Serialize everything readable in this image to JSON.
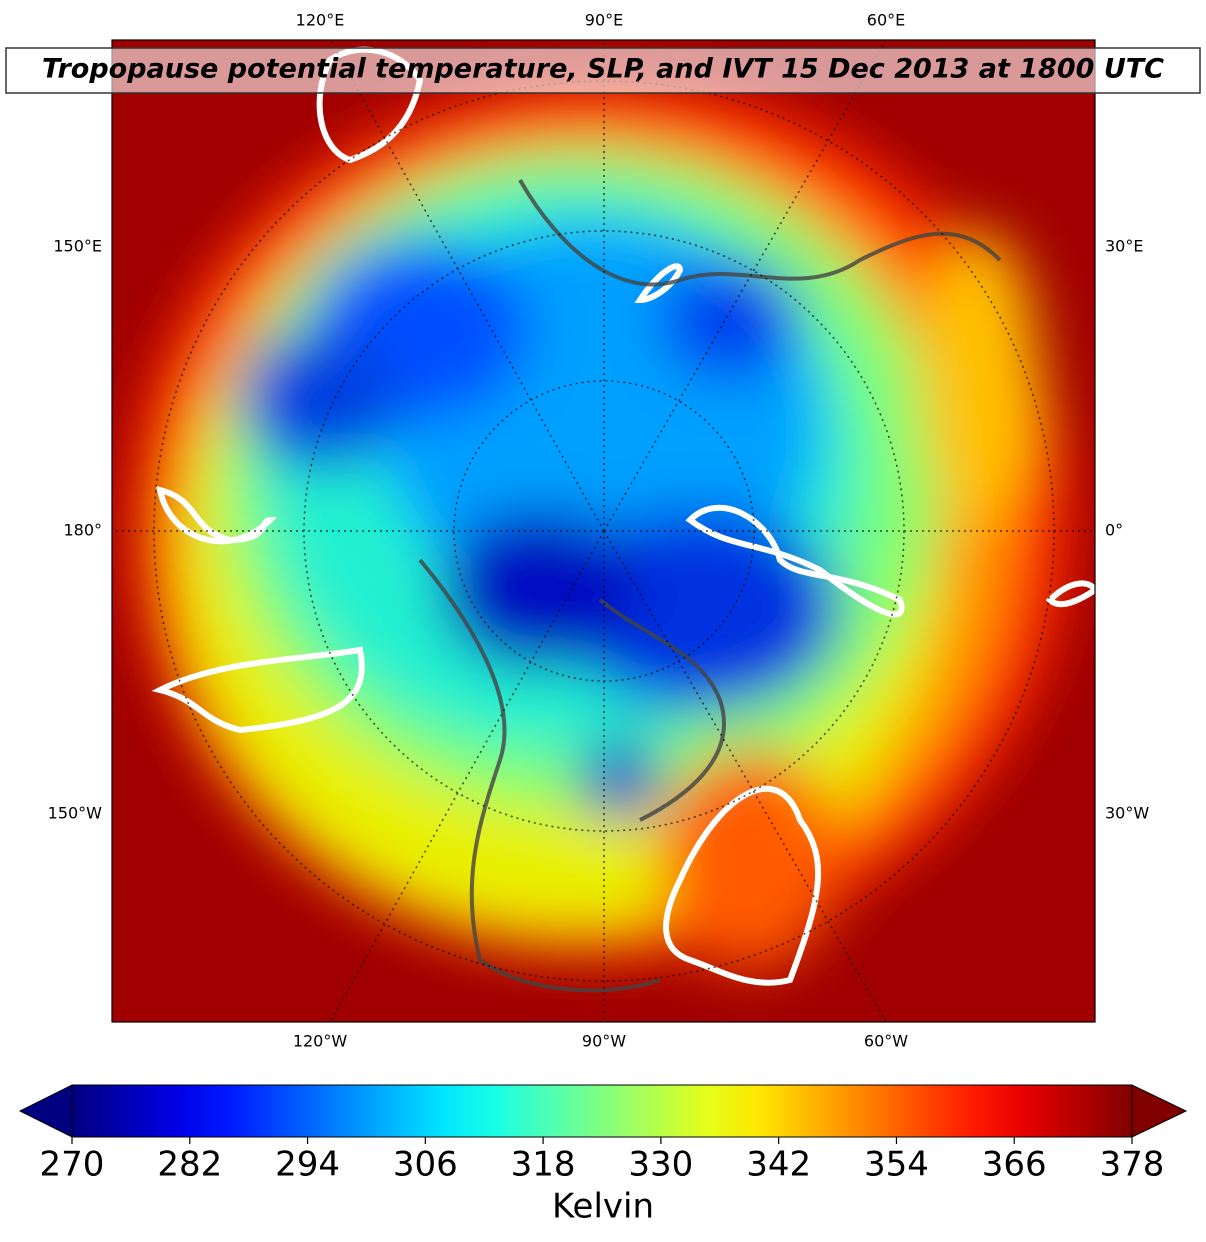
{
  "map": {
    "title": "Tropopause potential temperature, SLP, and IVT 15 Dec 2013 at 1800 UTC",
    "labels_top": [
      "120°E",
      "90°E",
      "60°E"
    ],
    "labels_bottom": [
      "120°W",
      "90°W",
      "60°W"
    ],
    "labels_left": [
      "150°E",
      "180°",
      "150°W"
    ],
    "labels_right": [
      "30°E",
      "0°",
      "30°W"
    ]
  },
  "colorbar": {
    "label": "Kelvin",
    "colormap": "jet",
    "lim": [
      270,
      378
    ],
    "ticks": [
      270,
      282,
      294,
      306,
      318,
      330,
      342,
      354,
      366,
      378
    ]
  }
}
